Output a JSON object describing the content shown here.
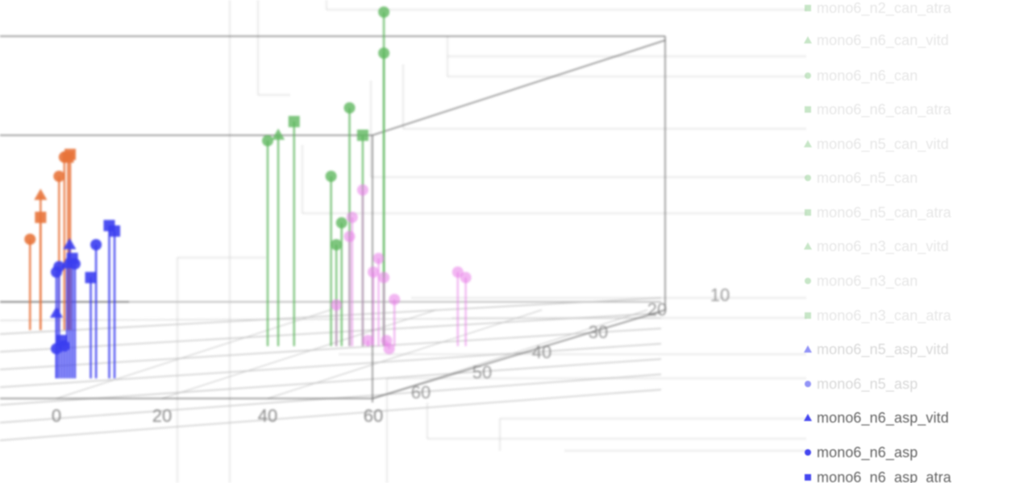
{
  "chart_data": {
    "type": "scatter",
    "subtype": "3d-stem",
    "x_ticks": [
      "0",
      "20",
      "40",
      "60"
    ],
    "depth_ticks": [
      "60",
      "50",
      "40",
      "30",
      "20",
      "10"
    ],
    "colors": {
      "orange": "#e8743b",
      "blue": "#3a3df0",
      "green": "#5fb85f",
      "pink": "#e87ce8",
      "axis": "#555555",
      "grid": "#bbbbbb",
      "bg_lines": "#d8d8d8"
    },
    "groups": [
      {
        "color_key": "orange",
        "points": [
          {
            "x": -5,
            "z": 42,
            "marker": "circle"
          },
          {
            "x": -3,
            "z": 58,
            "marker": "triangle"
          },
          {
            "x": -3,
            "z": 50,
            "marker": "square"
          },
          {
            "x": 0.5,
            "z": 65,
            "marker": "circle"
          },
          {
            "x": 1.5,
            "z": 72,
            "marker": "circle"
          },
          {
            "x": 2.2,
            "z": 72,
            "marker": "square"
          },
          {
            "x": 2.6,
            "z": 73,
            "marker": "square"
          }
        ]
      },
      {
        "color_key": "blue",
        "points": [
          {
            "x": 0,
            "z": 30,
            "marker": "circle"
          },
          {
            "x": 0,
            "z": 15,
            "marker": "triangle"
          },
          {
            "x": 0,
            "z": 2,
            "marker": "circle"
          },
          {
            "x": 0.5,
            "z": 32,
            "marker": "circle"
          },
          {
            "x": 1,
            "z": 5,
            "marker": "square"
          },
          {
            "x": 1.5,
            "z": 3,
            "marker": "circle"
          },
          {
            "x": 2,
            "z": 33,
            "marker": "triangle"
          },
          {
            "x": 2.5,
            "z": 40,
            "marker": "triangle"
          },
          {
            "x": 3,
            "z": 35,
            "marker": "square"
          },
          {
            "x": 3.5,
            "z": 33,
            "marker": "circle"
          },
          {
            "x": 6.5,
            "z": 28,
            "marker": "square"
          },
          {
            "x": 7.5,
            "z": 40,
            "marker": "circle"
          },
          {
            "x": 10,
            "z": 47,
            "marker": "square"
          },
          {
            "x": 11,
            "z": 45,
            "marker": "square"
          }
        ]
      },
      {
        "color_key": "green",
        "points": [
          {
            "x": 40,
            "z": 78,
            "marker": "circle"
          },
          {
            "x": 42,
            "z": 80,
            "marker": "triangle"
          },
          {
            "x": 45,
            "z": 85,
            "marker": "square"
          },
          {
            "x": 52,
            "z": 65,
            "marker": "circle"
          },
          {
            "x": 53,
            "z": 40,
            "marker": "circle"
          },
          {
            "x": 54,
            "z": 48,
            "marker": "circle"
          },
          {
            "x": 55.5,
            "z": 90,
            "marker": "circle"
          },
          {
            "x": 58,
            "z": 80,
            "marker": "square"
          },
          {
            "x": 62,
            "z": 110,
            "marker": "circle"
          },
          {
            "x": 62,
            "z": 125,
            "marker": "circle"
          }
        ]
      },
      {
        "color_key": "pink",
        "points": [
          {
            "x": 53,
            "z": 18,
            "marker": "circle"
          },
          {
            "x": 55.5,
            "z": 43,
            "marker": "circle"
          },
          {
            "x": 56,
            "z": 50,
            "marker": "circle"
          },
          {
            "x": 58,
            "z": 60,
            "marker": "circle"
          },
          {
            "x": 59,
            "z": 5,
            "marker": "circle"
          },
          {
            "x": 60,
            "z": 30,
            "marker": "circle"
          },
          {
            "x": 61,
            "z": 35,
            "marker": "circle"
          },
          {
            "x": 62,
            "z": 28,
            "marker": "circle"
          },
          {
            "x": 62.5,
            "z": 5,
            "marker": "circle"
          },
          {
            "x": 63,
            "z": 2,
            "marker": "circle"
          },
          {
            "x": 64,
            "z": 20,
            "marker": "circle"
          },
          {
            "x": 76,
            "z": 30,
            "marker": "circle"
          },
          {
            "x": 77.5,
            "z": 28,
            "marker": "circle"
          }
        ]
      }
    ],
    "legend": [
      {
        "label": "mono6_n2_can_atra",
        "marker": "square",
        "color_key": "green",
        "faded": true
      },
      {
        "label": "mono6_n6_can_vitd",
        "marker": "triangle",
        "color_key": "green",
        "faded": true
      },
      {
        "label": "mono6_n6_can",
        "marker": "circle",
        "color_key": "green",
        "faded": true
      },
      {
        "label": "mono6_n6_can_atra",
        "marker": "square",
        "color_key": "green",
        "faded": true
      },
      {
        "label": "mono6_n5_can_vitd",
        "marker": "triangle",
        "color_key": "green",
        "faded": true
      },
      {
        "label": "mono6_n5_can",
        "marker": "circle",
        "color_key": "green",
        "faded": true
      },
      {
        "label": "mono6_n5_can_atra",
        "marker": "square",
        "color_key": "green",
        "faded": true
      },
      {
        "label": "mono6_n3_can_vitd",
        "marker": "triangle",
        "color_key": "green",
        "faded": true
      },
      {
        "label": "mono6_n3_can",
        "marker": "circle",
        "color_key": "green",
        "faded": true
      },
      {
        "label": "mono6_n3_can_atra",
        "marker": "square",
        "color_key": "green",
        "faded": true
      },
      {
        "label": "mono6_n5_asp_vitd",
        "marker": "triangle",
        "color_key": "blue",
        "faded": true
      },
      {
        "label": "mono6_n5_asp",
        "marker": "circle",
        "color_key": "blue",
        "faded": true
      },
      {
        "label": "mono6_n6_asp_vitd",
        "marker": "triangle",
        "color_key": "blue",
        "faded": false
      },
      {
        "label": "mono6_n6_asp",
        "marker": "circle",
        "color_key": "blue",
        "faded": false
      },
      {
        "label": "mono6_n6_asp_atra",
        "marker": "square",
        "color_key": "blue",
        "faded": false
      }
    ]
  }
}
